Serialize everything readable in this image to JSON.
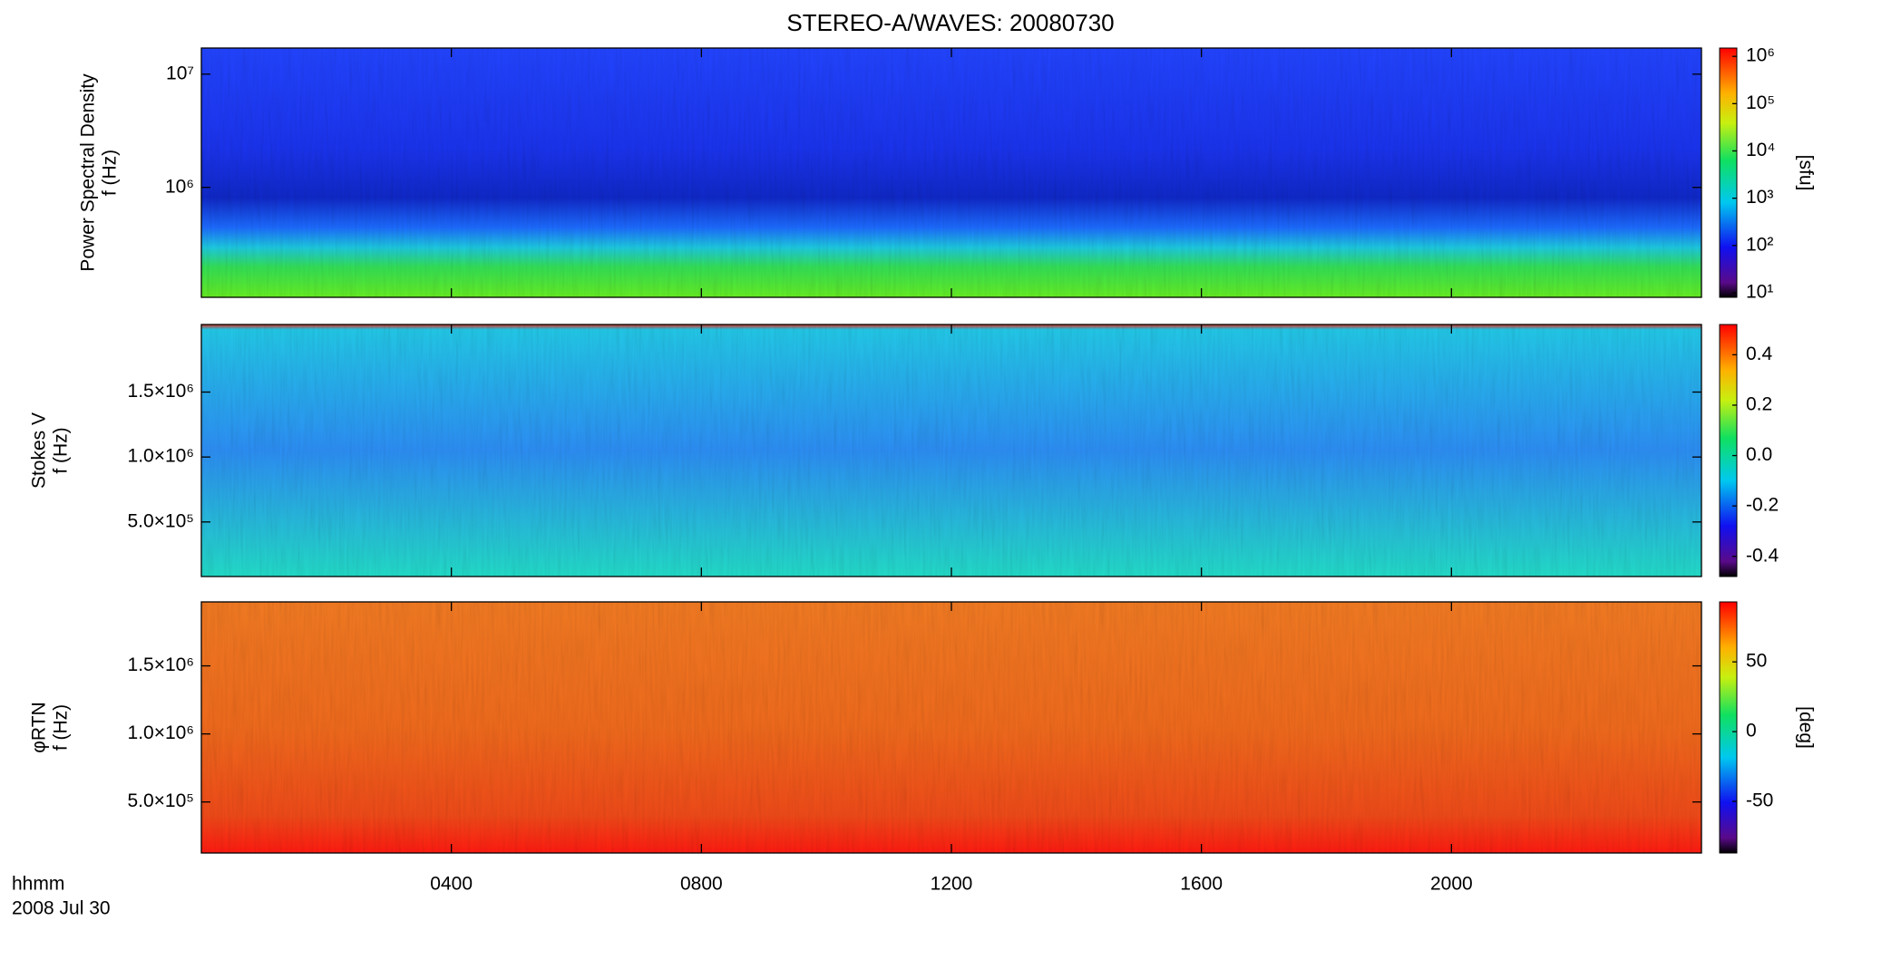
{
  "chart_data": {
    "type": "spectrogram",
    "title": "STEREO-A/WAVES: 20080730",
    "x_label_lines": [
      "hhmm",
      "2008 Jul 30"
    ],
    "xlim": [
      0,
      24
    ],
    "xticks": [
      {
        "value": 4,
        "label": "0400"
      },
      {
        "value": 8,
        "label": "0800"
      },
      {
        "value": 12,
        "label": "1200"
      },
      {
        "value": 16,
        "label": "1600"
      },
      {
        "value": 20,
        "label": "2000"
      }
    ],
    "panels": [
      {
        "ylabel": [
          "Power Spectral Density",
          "f (Hz)"
        ],
        "ylog": true,
        "ylim": [
          107000,
          17000000
        ],
        "yticks": [
          {
            "value": 1000000,
            "label": "10⁶"
          },
          {
            "value": 10000000,
            "label": "10⁷"
          }
        ],
        "clog": true,
        "clim": [
          8,
          1500000
        ],
        "cticks": [
          {
            "value": 10,
            "label": "10¹"
          },
          {
            "value": 100,
            "label": "10²"
          },
          {
            "value": 1000,
            "label": "10³"
          },
          {
            "value": 10000,
            "label": "10⁴"
          },
          {
            "value": 100000,
            "label": "10⁵"
          },
          {
            "value": 1000000,
            "label": "10⁶"
          }
        ],
        "clabel": "[sfu]"
      },
      {
        "ylabel": [
          "Stokes V",
          "f (Hz)"
        ],
        "ylog": false,
        "ylim": [
          80000,
          2020000
        ],
        "yticks": [
          {
            "value": 500000,
            "label": "5.0×10⁵"
          },
          {
            "value": 1000000,
            "label": "1.0×10⁶"
          },
          {
            "value": 1500000,
            "label": "1.5×10⁶"
          }
        ],
        "clog": false,
        "clim": [
          -0.48,
          0.52
        ],
        "cticks": [
          -0.4,
          -0.2,
          {
            "value": 0,
            "label": "0.0"
          },
          0.2,
          0.4
        ]
      },
      {
        "ylabel": [
          "φRTN",
          "f (Hz)"
        ],
        "ylog": false,
        "ylim": [
          125000,
          1970000
        ],
        "yticks": [
          {
            "value": 500000,
            "label": "5.0×10⁵"
          },
          {
            "value": 1000000,
            "label": "1.0×10⁶"
          },
          {
            "value": 1500000,
            "label": "1.5×10⁶"
          }
        ],
        "clog": false,
        "clim": [
          -87,
          93
        ],
        "cticks": [
          -50,
          0,
          50
        ],
        "clabel": "[deg]"
      }
    ]
  }
}
